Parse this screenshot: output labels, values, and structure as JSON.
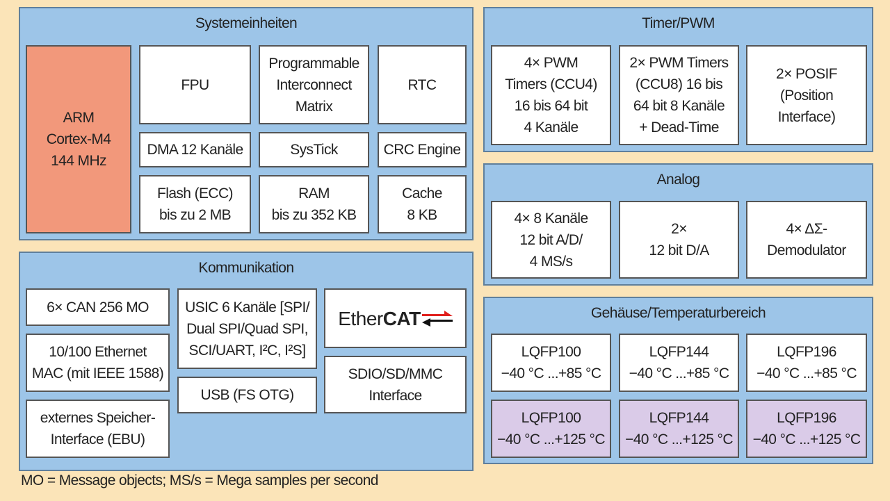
{
  "system": {
    "title": "Systemeinheiten",
    "arm": "ARM\nCortex-M4\n144 MHz",
    "fpu": "FPU",
    "pim": "Programmable\nInterconnect\nMatrix",
    "rtc": "RTC",
    "dma": "DMA 12 Kanäle",
    "systick": "SysTick",
    "crc": "CRC Engine",
    "flash": "Flash (ECC)\nbis zu 2 MB",
    "ram": "RAM\nbis zu 352 KB",
    "cache": "Cache\n8 KB"
  },
  "comm": {
    "title": "Kommunikation",
    "can": "6× CAN 256 MO",
    "ethernet": "10/100 Ethernet\nMAC (mit IEEE 1588)",
    "ebu": "externes Speicher-\nInterface (EBU)",
    "usic": "USIC 6 Kanäle [SPI/\nDual SPI/Quad SPI,\nSCI/UART, I²C, I²S]",
    "usb": "USB (FS OTG)",
    "ethercat_a": "Ether",
    "ethercat_b": "CAT",
    "sdio": "SDIO/SD/MMC\nInterface"
  },
  "timer": {
    "title": "Timer/PWM",
    "ccu4": "4× PWM\nTimers (CCU4)\n16 bis 64 bit\n4 Kanäle",
    "ccu8": "2× PWM Timers\n(CCU8) 16 bis\n64 bit 8 Kanäle\n+ Dead-Time",
    "posif": "2× POSIF\n(Position\nInterface)"
  },
  "analog": {
    "title": "Analog",
    "adc": "4× 8 Kanäle\n12 bit A/D/\n4 MS/s",
    "dac": "2×\n12 bit D/A",
    "dsd": "4× ΔΣ-\nDemodulator"
  },
  "package": {
    "title": "Gehäuse/Temperaturbereich",
    "row1": [
      "LQFP100\n−40 °C ...+85 °C",
      "LQFP144\n−40 °C ...+85 °C",
      "LQFP196\n−40 °C ...+85 °C"
    ],
    "row2": [
      "LQFP100\n−40 °C ...+125 °C",
      "LQFP144\n−40 °C ...+125 °C",
      "LQFP196\n−40 °C ...+125 °C"
    ]
  },
  "footer": "MO = Message objects; MS/s = Mega samples per second",
  "colors": {
    "background": "#fbe4b8",
    "panel": "#9dc5e8",
    "cpu": "#f2987b",
    "extended_temp": "#dacbe8",
    "logo_red": "#e0201c"
  }
}
